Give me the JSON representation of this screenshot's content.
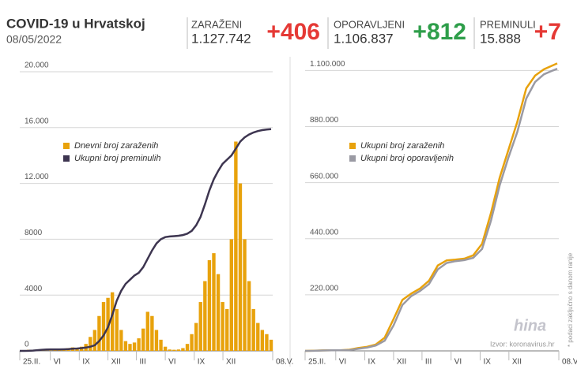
{
  "header": {
    "title": "COVID-19 u Hrvatskoj",
    "date": "08/05/2022"
  },
  "stats": [
    {
      "label": "ZARAŽENI",
      "total": "1.127.742",
      "delta": "+406",
      "color": "#e53935"
    },
    {
      "label": "OPORAVLJENI",
      "total": "1.106.837",
      "delta": "+812",
      "color": "#2e9e4a"
    },
    {
      "label": "PREMINULI",
      "total": "15.888",
      "delta": "+7",
      "color": "#e53935"
    }
  ],
  "footer": {
    "source": "Izvor: koronavirus.hr",
    "logo": "hina",
    "note": "* podaci zaključno s danom ranije"
  },
  "chart_data": [
    {
      "type": "bar",
      "xlim": [
        0,
        803
      ],
      "xticks": [
        {
          "value": 0,
          "label": "25.II."
        },
        {
          "value": 97,
          "label": "VI"
        },
        {
          "value": 189,
          "label": "IX"
        },
        {
          "value": 280,
          "label": "XII"
        },
        {
          "value": 370,
          "label": "III"
        },
        {
          "value": 462,
          "label": "VI"
        },
        {
          "value": 554,
          "label": "IX"
        },
        {
          "value": 645,
          "label": "XII"
        },
        {
          "value": 803,
          "label": "08.V."
        }
      ],
      "ylim": [
        0,
        20000
      ],
      "yticks": [
        0,
        4000,
        8000,
        {
          "value": 12000,
          "label": "12.000"
        },
        {
          "value": 16000,
          "label": "16.000"
        },
        {
          "value": 20000,
          "label": "20.000"
        }
      ],
      "grid": true,
      "x": [
        0,
        14,
        28,
        42,
        56,
        70,
        84,
        98,
        112,
        126,
        140,
        154,
        168,
        182,
        196,
        210,
        224,
        238,
        252,
        266,
        280,
        294,
        308,
        322,
        336,
        350,
        364,
        378,
        392,
        406,
        420,
        434,
        448,
        462,
        476,
        490,
        504,
        518,
        532,
        546,
        560,
        574,
        588,
        602,
        616,
        630,
        644,
        658,
        672,
        686,
        700,
        714,
        728,
        742,
        756,
        770,
        784,
        798
      ],
      "series": [
        {
          "name": "Dnevni broj zaraženih",
          "type": "bar",
          "color": "#e8a20c",
          "values": [
            0,
            30,
            80,
            60,
            40,
            20,
            10,
            20,
            50,
            100,
            150,
            200,
            250,
            200,
            300,
            500,
            1000,
            1500,
            2500,
            3500,
            3800,
            4200,
            3000,
            1500,
            700,
            500,
            600,
            900,
            1600,
            2800,
            2500,
            1500,
            800,
            300,
            100,
            80,
            100,
            200,
            500,
            1200,
            2000,
            3500,
            5000,
            6500,
            7000,
            5500,
            3500,
            3000,
            8000,
            15000,
            12000,
            8000,
            5000,
            3000,
            2000,
            1500,
            1200,
            800
          ]
        },
        {
          "name": "Ukupni broj preminulih",
          "type": "line",
          "color": "#3d3550",
          "values": [
            0,
            0,
            5,
            20,
            50,
            80,
            100,
            105,
            108,
            110,
            115,
            125,
            150,
            170,
            200,
            240,
            300,
            400,
            700,
            1100,
            1700,
            2600,
            3600,
            4300,
            4800,
            5100,
            5400,
            5600,
            6000,
            6600,
            7200,
            7700,
            8000,
            8150,
            8200,
            8220,
            8250,
            8300,
            8400,
            8600,
            9000,
            9600,
            10500,
            11500,
            12300,
            12900,
            13400,
            13700,
            14000,
            14500,
            15000,
            15300,
            15500,
            15650,
            15750,
            15820,
            15860,
            15888
          ]
        }
      ]
    },
    {
      "type": "line",
      "xlim": [
        0,
        803
      ],
      "xticks": [
        {
          "value": 0,
          "label": "25.II."
        },
        {
          "value": 97,
          "label": "VI"
        },
        {
          "value": 189,
          "label": "IX"
        },
        {
          "value": 280,
          "label": "XII"
        },
        {
          "value": 370,
          "label": "III"
        },
        {
          "value": 462,
          "label": "VI"
        },
        {
          "value": 554,
          "label": "IX"
        },
        {
          "value": 645,
          "label": "XII"
        },
        {
          "value": 803,
          "label": "08.V."
        }
      ],
      "ylim": [
        0,
        1160000
      ],
      "yticks": [
        {
          "value": 220000,
          "label": "220.000"
        },
        {
          "value": 440000,
          "label": "440.000"
        },
        {
          "value": 660000,
          "label": "660.000"
        },
        {
          "value": 880000,
          "label": "880.000"
        },
        {
          "value": 1100000,
          "label": "1.100.000"
        }
      ],
      "grid": true,
      "x": [
        0,
        28,
        56,
        84,
        112,
        140,
        168,
        196,
        224,
        252,
        280,
        308,
        336,
        364,
        392,
        420,
        448,
        476,
        504,
        532,
        560,
        588,
        616,
        644,
        672,
        700,
        728,
        756,
        784,
        798
      ],
      "series": [
        {
          "name": "Ukupni broj zaraženih",
          "type": "line",
          "color": "#e8a20c",
          "values": [
            0,
            1000,
            2000,
            2250,
            2500,
            4500,
            11000,
            16000,
            25000,
            52000,
            125000,
            200000,
            225000,
            245000,
            275000,
            335000,
            355000,
            358000,
            362000,
            375000,
            420000,
            540000,
            680000,
            790000,
            900000,
            1030000,
            1080000,
            1105000,
            1120000,
            1127742
          ]
        },
        {
          "name": "Ukupni broj oporavljenih",
          "type": "line",
          "color": "#9a9aa3",
          "values": [
            0,
            200,
            1500,
            2100,
            2300,
            3000,
            8000,
            13000,
            21000,
            40000,
            100000,
            180000,
            215000,
            235000,
            262000,
            320000,
            345000,
            352000,
            356000,
            365000,
            400000,
            510000,
            650000,
            760000,
            860000,
            990000,
            1055000,
            1085000,
            1100000,
            1106837
          ]
        }
      ]
    }
  ]
}
